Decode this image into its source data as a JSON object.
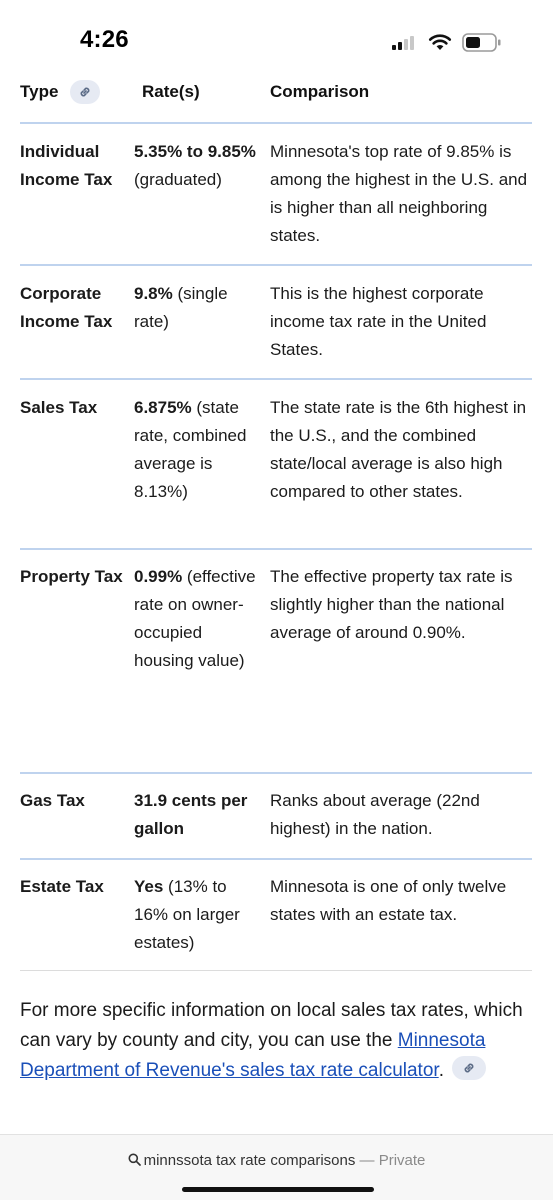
{
  "status": {
    "time": "4:26"
  },
  "table": {
    "headers": {
      "type": "Type",
      "rates": "Rate(s)",
      "comparison": "Comparison"
    },
    "rows": [
      {
        "type": "Individual Income Tax",
        "rate_bold": "5.35% to 9.85%",
        "rate_rest": " (graduated)",
        "comparison": "Minnesota's top rate of 9.85% is among the highest in the U.S. and is higher than all neighboring states."
      },
      {
        "type": "Corporate Income Tax",
        "rate_bold": "9.8%",
        "rate_rest": " (single rate)",
        "comparison": "This is the highest corporate income tax rate in the United States."
      },
      {
        "type": "Sales Tax",
        "rate_bold": "6.875%",
        "rate_rest": " (state rate, combined average is 8.13%)",
        "comparison": "The state rate is the 6th highest in the U.S., and the combined state/local average is also high compared to other states."
      },
      {
        "type": "Property Tax",
        "rate_bold": "0.99%",
        "rate_rest": " (effective rate on owner-occupied housing value)",
        "comparison": "The effective property tax rate is slightly higher than the national average of around 0.90%."
      },
      {
        "type": "Gas Tax",
        "rate_bold": "31.9 cents per gallon",
        "rate_rest": "",
        "comparison": "Ranks about average (22nd highest) in the nation."
      },
      {
        "type": "Estate Tax",
        "rate_bold": "Yes",
        "rate_rest": " (13% to 16% on larger estates)",
        "comparison": "Minnesota is one of only twelve states with an estate tax."
      }
    ]
  },
  "footer": {
    "text": "For more specific information on local sales tax rates, which can vary by county and city, you can use the ",
    "link": "Minnesota Department of Revenue's sales tax rate calculator",
    "after": "."
  },
  "url_bar": {
    "query": "minnssota tax rate comparisons",
    "separator": " — ",
    "mode": "Private"
  },
  "colors": {
    "link": "#1a4fb8",
    "chip_bg": "#e6eaf3",
    "header_rule": "#bfd3ee",
    "row_rule": "#dcdcdc"
  },
  "icons": [
    "link-icon",
    "search-icon",
    "signal-icon",
    "wifi-icon",
    "battery-icon"
  ]
}
